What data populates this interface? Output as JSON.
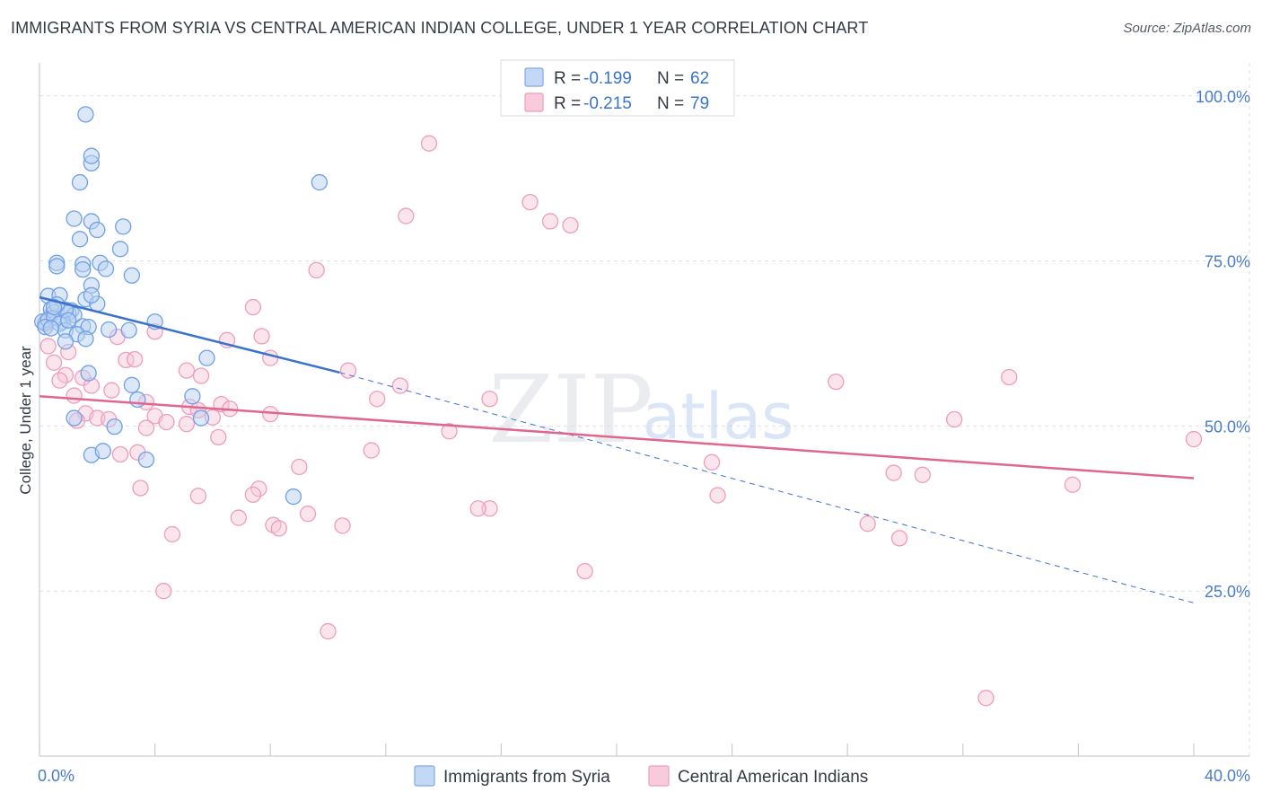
{
  "header": {
    "title": "IMMIGRANTS FROM SYRIA VS CENTRAL AMERICAN INDIAN COLLEGE, UNDER 1 YEAR CORRELATION CHART",
    "source": "Source: ZipAtlas.com"
  },
  "legend_top": {
    "rows": [
      {
        "r_label": "R = ",
        "r_value": "-0.199",
        "n_label": "N = ",
        "n_value": "62"
      },
      {
        "r_label": "R = ",
        "r_value": "-0.215",
        "n_label": "N = ",
        "n_value": "79"
      }
    ]
  },
  "watermark": {
    "zip": "ZIP",
    "atlas": "atlas"
  },
  "chart_data": {
    "type": "scatter",
    "title": "IMMIGRANTS FROM SYRIA VS CENTRAL AMERICAN INDIAN COLLEGE, UNDER 1 YEAR CORRELATION CHART",
    "xlabel": "",
    "ylabel": "College, Under 1 year",
    "xlim": [
      0,
      40
    ],
    "ylim": [
      0,
      105
    ],
    "x_tick_labels": [
      "0.0%",
      "40.0%"
    ],
    "y_tick_labels": [
      "100.0%",
      "75.0%",
      "50.0%",
      "25.0%"
    ],
    "y_ticks": [
      100,
      75,
      50,
      25
    ],
    "grid": true,
    "legend_placement": "bottom-center",
    "colors": {
      "syria": "#6fa0e6",
      "syria_line": "#3a72d0",
      "cai": "#f1a3bf",
      "cai_line": "#e0668f"
    },
    "series": [
      {
        "name": "Immigrants from Syria",
        "r": -0.199,
        "n": 62,
        "trend": {
          "x0": 0,
          "y0": 69.5,
          "x1": 10.4,
          "y1": 58.1,
          "dashed_to_x": 40,
          "dashed_to_y": 23.2
        },
        "points": [
          [
            1.6,
            97.2
          ],
          [
            1.8,
            89.8
          ],
          [
            1.8,
            90.9
          ],
          [
            1.4,
            86.9
          ],
          [
            9.7,
            86.9
          ],
          [
            1.2,
            81.4
          ],
          [
            1.8,
            81.0
          ],
          [
            2.0,
            79.7
          ],
          [
            2.9,
            80.2
          ],
          [
            1.4,
            78.3
          ],
          [
            0.6,
            74.7
          ],
          [
            1.5,
            74.5
          ],
          [
            2.1,
            74.7
          ],
          [
            0.6,
            74.2
          ],
          [
            1.5,
            73.7
          ],
          [
            2.3,
            73.8
          ],
          [
            2.8,
            76.8
          ],
          [
            3.2,
            72.8
          ],
          [
            1.8,
            71.3
          ],
          [
            0.3,
            69.7
          ],
          [
            0.7,
            69.8
          ],
          [
            1.6,
            69.2
          ],
          [
            2.0,
            68.5
          ],
          [
            0.4,
            67.7
          ],
          [
            0.5,
            67.2
          ],
          [
            1.1,
            67.5
          ],
          [
            1.0,
            67.1
          ],
          [
            1.2,
            66.8
          ],
          [
            0.2,
            65.6
          ],
          [
            0.1,
            65.8
          ],
          [
            0.3,
            66.1
          ],
          [
            0.8,
            65.8
          ],
          [
            1.5,
            65.1
          ],
          [
            1.7,
            65.0
          ],
          [
            0.5,
            66.4
          ],
          [
            0.9,
            67.6
          ],
          [
            0.6,
            68.4
          ],
          [
            1.8,
            69.8
          ],
          [
            0.7,
            65.5
          ],
          [
            4.0,
            65.8
          ],
          [
            0.9,
            64.5
          ],
          [
            1.3,
            63.9
          ],
          [
            1.6,
            63.2
          ],
          [
            0.9,
            62.8
          ],
          [
            3.1,
            64.5
          ],
          [
            2.4,
            64.6
          ],
          [
            5.8,
            60.3
          ],
          [
            1.7,
            58.0
          ],
          [
            3.2,
            56.2
          ],
          [
            3.4,
            54.0
          ],
          [
            5.3,
            54.5
          ],
          [
            1.2,
            51.2
          ],
          [
            5.6,
            51.2
          ],
          [
            2.6,
            49.9
          ],
          [
            1.8,
            45.6
          ],
          [
            2.2,
            46.2
          ],
          [
            3.7,
            44.9
          ],
          [
            8.8,
            39.3
          ],
          [
            0.2,
            65.0
          ],
          [
            0.4,
            64.8
          ],
          [
            1.0,
            66.0
          ],
          [
            0.5,
            68.0
          ]
        ]
      },
      {
        "name": "Central American Indians",
        "r": -0.215,
        "n": 79,
        "trend": {
          "x0": 0,
          "y0": 54.5,
          "x1": 40,
          "y1": 42.1
        },
        "points": [
          [
            13.5,
            92.8
          ],
          [
            17.0,
            83.9
          ],
          [
            12.7,
            81.8
          ],
          [
            17.7,
            81.0
          ],
          [
            18.4,
            80.4
          ],
          [
            9.6,
            73.6
          ],
          [
            7.4,
            68.0
          ],
          [
            2.7,
            63.5
          ],
          [
            4.0,
            64.3
          ],
          [
            7.7,
            63.6
          ],
          [
            6.5,
            63.0
          ],
          [
            0.3,
            62.1
          ],
          [
            3.0,
            60.0
          ],
          [
            3.3,
            60.1
          ],
          [
            8.0,
            60.3
          ],
          [
            0.5,
            59.6
          ],
          [
            5.1,
            58.4
          ],
          [
            5.6,
            57.6
          ],
          [
            10.7,
            58.4
          ],
          [
            0.9,
            57.7
          ],
          [
            1.5,
            57.3
          ],
          [
            0.7,
            56.9
          ],
          [
            1.8,
            56.1
          ],
          [
            12.5,
            56.1
          ],
          [
            27.6,
            56.7
          ],
          [
            33.6,
            57.4
          ],
          [
            2.5,
            55.4
          ],
          [
            1.2,
            54.6
          ],
          [
            11.7,
            54.1
          ],
          [
            15.6,
            54.1
          ],
          [
            3.7,
            53.6
          ],
          [
            6.3,
            53.3
          ],
          [
            5.2,
            52.9
          ],
          [
            5.5,
            52.4
          ],
          [
            6.6,
            52.6
          ],
          [
            1.6,
            51.9
          ],
          [
            2.0,
            51.2
          ],
          [
            8.0,
            51.8
          ],
          [
            4.0,
            51.5
          ],
          [
            6.0,
            51.3
          ],
          [
            2.4,
            51.0
          ],
          [
            1.3,
            50.8
          ],
          [
            4.4,
            50.6
          ],
          [
            5.1,
            50.3
          ],
          [
            3.7,
            49.7
          ],
          [
            14.2,
            49.2
          ],
          [
            6.2,
            48.3
          ],
          [
            31.7,
            51.0
          ],
          [
            11.5,
            46.3
          ],
          [
            3.4,
            46.0
          ],
          [
            2.8,
            45.7
          ],
          [
            23.3,
            44.5
          ],
          [
            9.0,
            43.8
          ],
          [
            29.6,
            42.9
          ],
          [
            30.6,
            42.6
          ],
          [
            35.8,
            41.1
          ],
          [
            3.5,
            40.6
          ],
          [
            7.6,
            40.5
          ],
          [
            7.4,
            39.6
          ],
          [
            23.5,
            39.5
          ],
          [
            5.5,
            39.4
          ],
          [
            15.6,
            37.5
          ],
          [
            15.2,
            37.5
          ],
          [
            9.3,
            36.7
          ],
          [
            6.9,
            36.1
          ],
          [
            8.1,
            35.0
          ],
          [
            8.3,
            34.5
          ],
          [
            10.5,
            34.9
          ],
          [
            28.7,
            35.2
          ],
          [
            29.8,
            33.0
          ],
          [
            4.6,
            33.6
          ],
          [
            18.9,
            28.0
          ],
          [
            4.3,
            25.0
          ],
          [
            10.0,
            18.9
          ],
          [
            40.0,
            48.0
          ],
          [
            32.8,
            8.8
          ],
          [
            0.2,
            65.5
          ],
          [
            0.4,
            66.8
          ],
          [
            1.0,
            61.2
          ]
        ]
      }
    ]
  },
  "legend_bottom": {
    "items": [
      {
        "label": "Immigrants from Syria"
      },
      {
        "label": "Central American Indians"
      }
    ]
  }
}
